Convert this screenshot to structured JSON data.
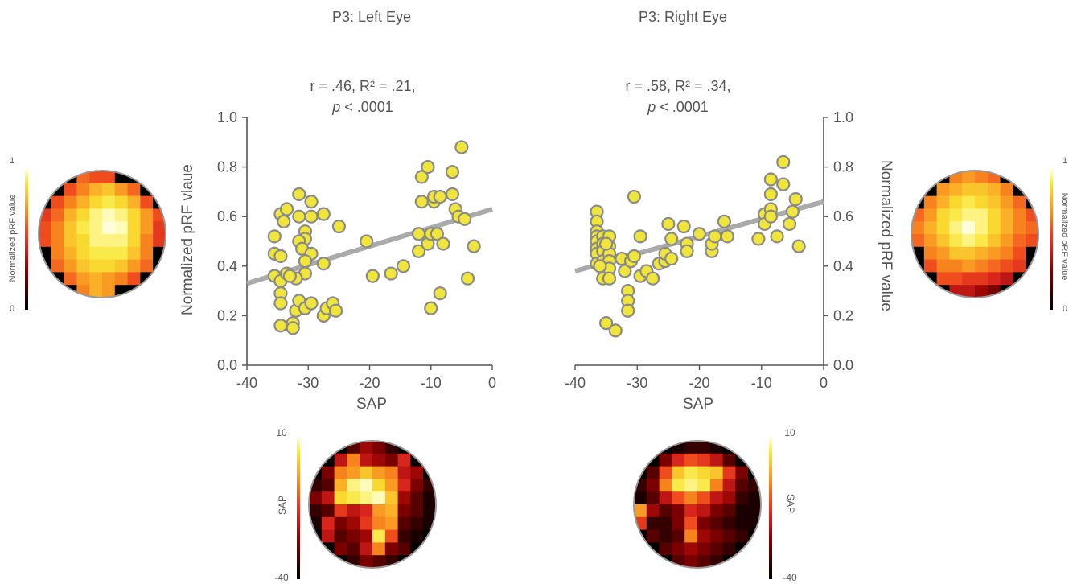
{
  "colors": {
    "point_fill": "#f0e53a",
    "point_stroke": "#8a8a8a",
    "fit_line": "#aaaaaa",
    "axis": "#555555",
    "text": "#555555",
    "map_border": "#999999"
  },
  "colormap_stops": [
    "#000000",
    "#3a0000",
    "#8b0000",
    "#d4201c",
    "#f04a1e",
    "#f7861f",
    "#fbb82a",
    "#f8e430",
    "#fffbb0",
    "#ffffff"
  ],
  "panels": {
    "left": {
      "title": "P3: Left Eye",
      "stats_line1": "r = .46, R² = .21,",
      "stats_p": "p",
      "stats_p_rest": " < .0001"
    },
    "right": {
      "title": "P3: Right Eye",
      "stats_line1": "r = .58, R² = .34,",
      "stats_p": "p",
      "stats_p_rest": " < .0001"
    }
  },
  "colorbars": {
    "prf_left": {
      "label": "Normalized pRF value",
      "max": "1",
      "min": "0"
    },
    "prf_right": {
      "label": "Normalized pRF value",
      "max": "1",
      "min": "0"
    },
    "sap_left": {
      "label": "SAP",
      "max": "10",
      "min": "-40"
    },
    "sap_right": {
      "label": "SAP",
      "max": "10",
      "min": "-40"
    }
  },
  "heatmaps": {
    "prf_left": [
      [
        0.0,
        0.0,
        0.0,
        0.5,
        0.45,
        0.45,
        0.0,
        0.0,
        0.0,
        0.0
      ],
      [
        0.0,
        0.0,
        0.45,
        0.55,
        0.65,
        0.7,
        0.6,
        0.5,
        0.0,
        0.0
      ],
      [
        0.0,
        0.45,
        0.55,
        0.65,
        0.75,
        0.8,
        0.75,
        0.65,
        0.45,
        0.0
      ],
      [
        0.4,
        0.5,
        0.65,
        0.75,
        0.85,
        0.9,
        0.85,
        0.75,
        0.6,
        0.45
      ],
      [
        0.45,
        0.55,
        0.7,
        0.8,
        0.85,
        0.95,
        0.9,
        0.75,
        0.6,
        0.4
      ],
      [
        0.45,
        0.55,
        0.7,
        0.75,
        0.85,
        0.85,
        0.85,
        0.75,
        0.55,
        0.4
      ],
      [
        0.0,
        0.55,
        0.65,
        0.75,
        0.8,
        0.8,
        0.8,
        0.7,
        0.55,
        0.0
      ],
      [
        0.0,
        0.5,
        0.6,
        0.7,
        0.75,
        0.75,
        0.7,
        0.6,
        0.5,
        0.0
      ],
      [
        0.0,
        0.0,
        0.5,
        0.6,
        0.65,
        0.6,
        0.55,
        0.45,
        0.0,
        0.0
      ],
      [
        0.0,
        0.0,
        0.0,
        0.55,
        0.65,
        0.6,
        0.0,
        0.0,
        0.0,
        0.0
      ]
    ],
    "prf_right": [
      [
        0.0,
        0.0,
        0.0,
        0.55,
        0.6,
        0.55,
        0.5,
        0.0,
        0.0,
        0.0
      ],
      [
        0.0,
        0.0,
        0.6,
        0.65,
        0.7,
        0.7,
        0.65,
        0.55,
        0.0,
        0.0
      ],
      [
        0.0,
        0.55,
        0.65,
        0.75,
        0.8,
        0.75,
        0.7,
        0.6,
        0.5,
        0.0
      ],
      [
        0.5,
        0.6,
        0.75,
        0.8,
        0.85,
        0.85,
        0.75,
        0.65,
        0.55,
        0.45
      ],
      [
        0.55,
        0.65,
        0.75,
        0.85,
        0.95,
        0.85,
        0.75,
        0.65,
        0.55,
        0.5
      ],
      [
        0.5,
        0.6,
        0.7,
        0.8,
        0.85,
        0.8,
        0.7,
        0.6,
        0.5,
        0.45
      ],
      [
        0.0,
        0.55,
        0.6,
        0.7,
        0.7,
        0.65,
        0.6,
        0.55,
        0.45,
        0.0
      ],
      [
        0.0,
        0.45,
        0.55,
        0.55,
        0.6,
        0.55,
        0.5,
        0.45,
        0.4,
        0.0
      ],
      [
        0.0,
        0.0,
        0.45,
        0.45,
        0.4,
        0.4,
        0.35,
        0.3,
        0.0,
        0.0
      ],
      [
        0.0,
        0.0,
        0.0,
        0.3,
        0.3,
        0.25,
        0.2,
        0.0,
        0.0,
        0.0
      ]
    ],
    "sap_left": [
      [
        0.0,
        0.0,
        0.0,
        0.15,
        0.25,
        0.2,
        0.1,
        0.0,
        0.0,
        0.0
      ],
      [
        0.0,
        0.0,
        0.3,
        0.55,
        0.3,
        0.25,
        0.2,
        0.35,
        0.0,
        0.0
      ],
      [
        0.0,
        0.2,
        0.55,
        0.6,
        0.7,
        0.6,
        0.55,
        0.3,
        0.25,
        0.0
      ],
      [
        0.1,
        0.15,
        0.65,
        0.85,
        0.9,
        0.75,
        0.6,
        0.35,
        0.2,
        0.1
      ],
      [
        0.2,
        0.3,
        0.75,
        0.8,
        0.85,
        0.9,
        0.7,
        0.25,
        0.15,
        0.05
      ],
      [
        0.1,
        0.15,
        0.4,
        0.3,
        0.35,
        0.6,
        0.65,
        0.2,
        0.15,
        0.05
      ],
      [
        0.05,
        0.35,
        0.2,
        0.25,
        0.4,
        0.55,
        0.6,
        0.15,
        0.1,
        0.05
      ],
      [
        0.0,
        0.3,
        0.15,
        0.2,
        0.25,
        0.8,
        0.45,
        0.1,
        0.05,
        0.0
      ],
      [
        0.0,
        0.0,
        0.2,
        0.15,
        0.3,
        0.55,
        0.2,
        0.15,
        0.0,
        0.0
      ],
      [
        0.0,
        0.0,
        0.0,
        0.1,
        0.2,
        0.15,
        0.1,
        0.0,
        0.0,
        0.0
      ]
    ],
    "sap_right": [
      [
        0.0,
        0.0,
        0.0,
        0.05,
        0.1,
        0.1,
        0.05,
        0.0,
        0.0,
        0.0
      ],
      [
        0.0,
        0.0,
        0.2,
        0.35,
        0.45,
        0.4,
        0.3,
        0.15,
        0.0,
        0.0
      ],
      [
        0.0,
        0.15,
        0.45,
        0.7,
        0.8,
        0.75,
        0.7,
        0.4,
        0.2,
        0.0
      ],
      [
        0.1,
        0.2,
        0.55,
        0.8,
        0.85,
        0.8,
        0.55,
        0.3,
        0.15,
        0.1
      ],
      [
        0.05,
        0.15,
        0.3,
        0.45,
        0.55,
        0.45,
        0.3,
        0.25,
        0.1,
        0.05
      ],
      [
        0.6,
        0.25,
        0.15,
        0.2,
        0.35,
        0.3,
        0.2,
        0.15,
        0.05,
        0.05
      ],
      [
        0.4,
        0.1,
        0.1,
        0.2,
        0.45,
        0.2,
        0.15,
        0.1,
        0.05,
        0.05
      ],
      [
        0.0,
        0.15,
        0.1,
        0.15,
        0.55,
        0.25,
        0.2,
        0.15,
        0.1,
        0.0
      ],
      [
        0.0,
        0.0,
        0.15,
        0.2,
        0.25,
        0.2,
        0.15,
        0.1,
        0.0,
        0.0
      ],
      [
        0.0,
        0.0,
        0.0,
        0.15,
        0.2,
        0.15,
        0.1,
        0.0,
        0.0,
        0.0
      ]
    ]
  },
  "chart_data": [
    {
      "type": "scatter",
      "title": "P3: Left Eye",
      "xlabel": "SAP",
      "ylabel": "Normalized pRF vlaue",
      "xlim": [
        -40,
        0
      ],
      "ylim": [
        0,
        1
      ],
      "xticks": [
        "-40",
        "-30",
        "-20",
        "-10",
        "0"
      ],
      "yticks": [
        "0.0",
        "0.2",
        "0.4",
        "0.6",
        "0.8",
        "1.0"
      ],
      "grid": false,
      "fit_line": {
        "x": [
          -40,
          0
        ],
        "y": [
          0.33,
          0.63
        ]
      },
      "points": [
        [
          -35.5,
          0.52
        ],
        [
          -34.5,
          0.61
        ],
        [
          -34,
          0.58
        ],
        [
          -33.5,
          0.63
        ],
        [
          -35.5,
          0.45
        ],
        [
          -34.5,
          0.44
        ],
        [
          -35.5,
          0.36
        ],
        [
          -34.5,
          0.34
        ],
        [
          -33.5,
          0.37
        ],
        [
          -34.5,
          0.29
        ],
        [
          -34.5,
          0.25
        ],
        [
          -34.5,
          0.16
        ],
        [
          -32.5,
          0.17
        ],
        [
          -32.5,
          0.15
        ],
        [
          -32,
          0.22
        ],
        [
          -31.5,
          0.26
        ],
        [
          -30.5,
          0.23
        ],
        [
          -29.5,
          0.25
        ],
        [
          -27.5,
          0.2
        ],
        [
          -27,
          0.23
        ],
        [
          -26,
          0.25
        ],
        [
          -25.5,
          0.22
        ],
        [
          -31.5,
          0.69
        ],
        [
          -29.5,
          0.66
        ],
        [
          -29.5,
          0.6
        ],
        [
          -27.5,
          0.61
        ],
        [
          -31.5,
          0.6
        ],
        [
          -30.5,
          0.54
        ],
        [
          -30.5,
          0.51
        ],
        [
          -31.5,
          0.5
        ],
        [
          -31,
          0.47
        ],
        [
          -29.5,
          0.45
        ],
        [
          -30.5,
          0.42
        ],
        [
          -30.5,
          0.37
        ],
        [
          -32,
          0.35
        ],
        [
          -33,
          0.36
        ],
        [
          -27.5,
          0.41
        ],
        [
          -25,
          0.56
        ],
        [
          -20.5,
          0.5
        ],
        [
          -19.5,
          0.36
        ],
        [
          -16.5,
          0.37
        ],
        [
          -14.5,
          0.4
        ],
        [
          -12,
          0.53
        ],
        [
          -12,
          0.46
        ],
        [
          -11.5,
          0.76
        ],
        [
          -10.5,
          0.8
        ],
        [
          -11.5,
          0.66
        ],
        [
          -9.5,
          0.66
        ],
        [
          -9.5,
          0.68
        ],
        [
          -8.5,
          0.68
        ],
        [
          -10.5,
          0.49
        ],
        [
          -10,
          0.53
        ],
        [
          -9,
          0.53
        ],
        [
          -8,
          0.49
        ],
        [
          -10,
          0.23
        ],
        [
          -8.5,
          0.29
        ],
        [
          -6.5,
          0.69
        ],
        [
          -6,
          0.63
        ],
        [
          -5.5,
          0.6
        ],
        [
          -4.5,
          0.59
        ],
        [
          -6.5,
          0.78
        ],
        [
          -5,
          0.88
        ],
        [
          -3,
          0.48
        ],
        [
          -4,
          0.35
        ]
      ]
    },
    {
      "type": "scatter",
      "title": "P3: Right Eye",
      "xlabel": "SAP",
      "ylabel": "Normalized pRF value",
      "xlim": [
        -40,
        0
      ],
      "ylim": [
        0,
        1
      ],
      "xticks": [
        "-40",
        "-30",
        "-20",
        "-10",
        "0"
      ],
      "yticks": [
        "0.0",
        "0.2",
        "0.4",
        "0.6",
        "0.8",
        "1.0"
      ],
      "y_axis_side": "right",
      "grid": false,
      "fit_line": {
        "x": [
          -40,
          0
        ],
        "y": [
          0.38,
          0.66
        ]
      },
      "points": [
        [
          -36.5,
          0.62
        ],
        [
          -36.5,
          0.58
        ],
        [
          -36.5,
          0.54
        ],
        [
          -36.5,
          0.52
        ],
        [
          -36.5,
          0.5
        ],
        [
          -36.5,
          0.47
        ],
        [
          -36.5,
          0.45
        ],
        [
          -36.5,
          0.41
        ],
        [
          -35.5,
          0.52
        ],
        [
          -35.5,
          0.49
        ],
        [
          -35.5,
          0.46
        ],
        [
          -35.5,
          0.42
        ],
        [
          -35.5,
          0.39
        ],
        [
          -35.5,
          0.35
        ],
        [
          -34.5,
          0.52
        ],
        [
          -34.5,
          0.48
        ],
        [
          -34.5,
          0.45
        ],
        [
          -34.5,
          0.42
        ],
        [
          -34.5,
          0.39
        ],
        [
          -34.5,
          0.35
        ],
        [
          -35,
          0.49
        ],
        [
          -36,
          0.4
        ],
        [
          -35,
          0.17
        ],
        [
          -33.5,
          0.14
        ],
        [
          -32.5,
          0.43
        ],
        [
          -32,
          0.38
        ],
        [
          -31,
          0.42
        ],
        [
          -30.5,
          0.44
        ],
        [
          -31.5,
          0.3
        ],
        [
          -31.5,
          0.26
        ],
        [
          -31.5,
          0.22
        ],
        [
          -30.5,
          0.68
        ],
        [
          -29.5,
          0.52
        ],
        [
          -29.5,
          0.36
        ],
        [
          -28.5,
          0.38
        ],
        [
          -27.5,
          0.35
        ],
        [
          -26.5,
          0.41
        ],
        [
          -25.5,
          0.42
        ],
        [
          -25.5,
          0.45
        ],
        [
          -25,
          0.57
        ],
        [
          -24.5,
          0.43
        ],
        [
          -24.5,
          0.51
        ],
        [
          -22.5,
          0.56
        ],
        [
          -22,
          0.49
        ],
        [
          -22,
          0.46
        ],
        [
          -20,
          0.53
        ],
        [
          -18,
          0.46
        ],
        [
          -18,
          0.49
        ],
        [
          -17.5,
          0.52
        ],
        [
          -16,
          0.58
        ],
        [
          -15.5,
          0.52
        ],
        [
          -10.5,
          0.51
        ],
        [
          -9.5,
          0.61
        ],
        [
          -9.5,
          0.57
        ],
        [
          -8.5,
          0.63
        ],
        [
          -8.5,
          0.6
        ],
        [
          -8.5,
          0.69
        ],
        [
          -8.5,
          0.75
        ],
        [
          -7.5,
          0.52
        ],
        [
          -6.5,
          0.82
        ],
        [
          -6.5,
          0.73
        ],
        [
          -5.5,
          0.57
        ],
        [
          -4.5,
          0.67
        ],
        [
          -4,
          0.48
        ],
        [
          -5,
          0.62
        ]
      ]
    }
  ]
}
